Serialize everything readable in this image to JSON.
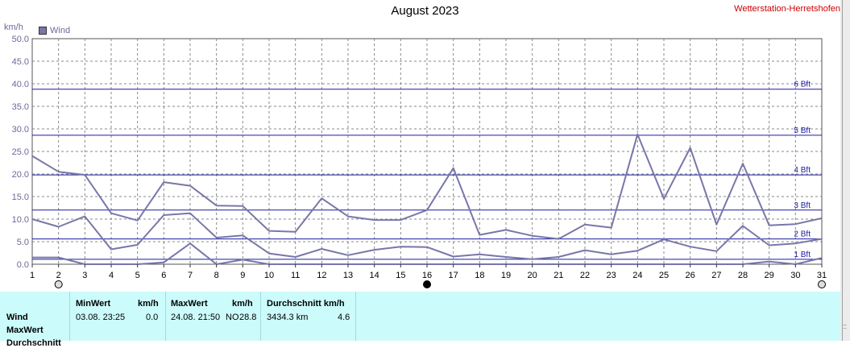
{
  "header": {
    "title": "August 2023",
    "station": "Wetterstation-Herretshofen",
    "y_unit": "km/h"
  },
  "chart_data": {
    "type": "line",
    "title": "August 2023",
    "ylabel": "km/h",
    "ylim": [
      0,
      50
    ],
    "y_ticks": [
      "0.0",
      "5.0",
      "10.0",
      "15.0",
      "20.0",
      "25.0",
      "30.0",
      "35.0",
      "40.0",
      "45.0",
      "50.0"
    ],
    "x": [
      1,
      2,
      3,
      4,
      5,
      6,
      7,
      8,
      9,
      10,
      11,
      12,
      13,
      14,
      15,
      16,
      17,
      18,
      19,
      20,
      21,
      22,
      23,
      24,
      25,
      26,
      27,
      28,
      29,
      30,
      31
    ],
    "legend": [
      "Wind"
    ],
    "series": [
      {
        "name": "Wind",
        "role": "max",
        "values": [
          24.0,
          20.5,
          19.8,
          11.3,
          9.7,
          18.2,
          17.4,
          13.0,
          12.9,
          7.4,
          7.2,
          14.6,
          10.6,
          9.8,
          9.8,
          12.0,
          21.3,
          6.5,
          7.6,
          6.3,
          5.6,
          8.8,
          8.1,
          28.8,
          14.5,
          25.8,
          8.8,
          22.3,
          8.6,
          8.9,
          10.2
        ]
      },
      {
        "role": "avg",
        "values": [
          10.0,
          8.3,
          10.6,
          3.3,
          4.3,
          10.9,
          11.3,
          5.9,
          6.4,
          2.4,
          1.6,
          3.4,
          2.0,
          3.2,
          3.9,
          3.8,
          1.7,
          2.2,
          1.6,
          1.1,
          1.6,
          3.1,
          2.2,
          3.0,
          5.5,
          3.9,
          2.9,
          8.5,
          4.2,
          4.6,
          5.6
        ]
      },
      {
        "role": "min",
        "values": [
          1.5,
          1.5,
          0.0,
          0.0,
          0.0,
          0.4,
          4.6,
          0.0,
          1.0,
          0.0,
          0.0,
          0.0,
          0.0,
          0.0,
          0.0,
          0.0,
          0.0,
          0.0,
          0.0,
          0.0,
          0.0,
          0.0,
          0.0,
          0.0,
          0.0,
          0.0,
          0.0,
          0.0,
          0.6,
          0.0,
          1.4
        ]
      }
    ],
    "beaufort_lines": [
      {
        "label": "1 Bft",
        "value": 1.1
      },
      {
        "label": "2 Bft",
        "value": 5.6
      },
      {
        "label": "3 Bft",
        "value": 12.0
      },
      {
        "label": "4 Bft",
        "value": 19.8
      },
      {
        "label": "5 Bft",
        "value": 28.6
      },
      {
        "label": "6 Bft",
        "value": 38.8
      }
    ],
    "grid": true,
    "moon_markers": [
      {
        "day": 2,
        "phase": "full"
      },
      {
        "day": 16,
        "phase": "new"
      },
      {
        "day": 31,
        "phase": "full"
      }
    ]
  },
  "stats": {
    "row_labels": [
      "Wind",
      "MaxWert",
      "Durchschnitt"
    ],
    "min_header": "MinWert",
    "min_unit": "km/h",
    "min_datetime": "03.08.  23:25",
    "min_value": "0.0",
    "max_header": "MaxWert",
    "max_unit": "km/h",
    "max_datetime": "24.08.  21:50",
    "max_dir": "NO",
    "max_value": "28.8",
    "avg_header": "Durchschnitt km/h",
    "avg_distance": "3434.3 km",
    "avg_value": "4.6"
  },
  "colors": {
    "series": "#7777aa",
    "beaufort": "#1a1aa0",
    "grid": "#888888",
    "panel_bg": "#ccfbfb",
    "station": "#cc0000"
  }
}
